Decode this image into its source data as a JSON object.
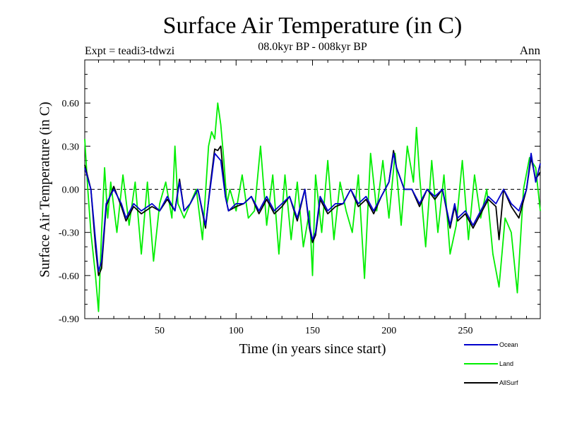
{
  "chart_data": {
    "type": "line",
    "title": "Surface Air Temperature (in C)",
    "subtitle": "08.0kyr BP - 008kyr BP",
    "experiment": "Expt = teadi3-tdwzi",
    "season": "Ann",
    "xlabel": "Time (in years since start)",
    "ylabel": "Surface Air Temperature (in C)",
    "xlim": [
      1,
      299
    ],
    "ylim": [
      -0.9,
      0.9
    ],
    "xticks": [
      50,
      100,
      150,
      200,
      250
    ],
    "xtick_labels": [
      "50",
      "100",
      "150",
      "200",
      "250"
    ],
    "yticks": [
      -0.9,
      -0.6,
      -0.3,
      0.0,
      0.3,
      0.6
    ],
    "ytick_labels": [
      "-0.90",
      "-0.60",
      "-0.30",
      "0.00",
      "0.30",
      "0.60"
    ],
    "zero_line": true,
    "series": [
      {
        "name": "Ocean",
        "color": "#0000cc",
        "x": [
          1,
          5,
          8,
          10,
          12,
          15,
          20,
          25,
          28,
          33,
          38,
          45,
          50,
          55,
          60,
          63,
          66,
          70,
          75,
          80,
          83,
          86,
          90,
          93,
          95,
          100,
          105,
          110,
          115,
          120,
          125,
          130,
          135,
          140,
          145,
          148,
          150,
          152,
          155,
          160,
          165,
          170,
          175,
          180,
          185,
          190,
          195,
          200,
          203,
          205,
          210,
          215,
          220,
          225,
          230,
          235,
          240,
          243,
          245,
          250,
          255,
          260,
          265,
          270,
          275,
          280,
          285,
          290,
          293,
          296,
          299
        ],
        "values": [
          0.15,
          0.0,
          -0.35,
          -0.57,
          -0.5,
          -0.1,
          0.0,
          -0.1,
          -0.2,
          -0.1,
          -0.15,
          -0.1,
          -0.15,
          -0.05,
          -0.15,
          0.05,
          -0.15,
          -0.1,
          0.0,
          -0.25,
          0.0,
          0.25,
          0.2,
          -0.05,
          -0.15,
          -0.1,
          -0.1,
          -0.05,
          -0.15,
          -0.05,
          -0.15,
          -0.1,
          -0.05,
          -0.2,
          0.0,
          -0.25,
          -0.35,
          -0.3,
          -0.05,
          -0.15,
          -0.1,
          -0.1,
          0.0,
          -0.1,
          -0.05,
          -0.15,
          -0.05,
          0.05,
          0.25,
          0.15,
          0.0,
          0.0,
          -0.1,
          0.0,
          -0.05,
          0.0,
          -0.25,
          -0.1,
          -0.2,
          -0.15,
          -0.25,
          -0.15,
          -0.05,
          -0.1,
          0.0,
          -0.1,
          -0.15,
          0.0,
          0.25,
          0.05,
          0.18
        ]
      },
      {
        "name": "Land",
        "color": "#00ee00",
        "x": [
          1,
          3,
          5,
          8,
          10,
          12,
          14,
          16,
          18,
          22,
          26,
          30,
          34,
          38,
          42,
          46,
          50,
          54,
          58,
          60,
          62,
          66,
          70,
          74,
          78,
          82,
          84,
          86,
          88,
          90,
          92,
          94,
          96,
          100,
          104,
          108,
          112,
          116,
          120,
          124,
          128,
          132,
          136,
          140,
          144,
          148,
          150,
          152,
          156,
          160,
          164,
          168,
          172,
          176,
          180,
          184,
          188,
          192,
          196,
          200,
          204,
          208,
          212,
          216,
          218,
          220,
          224,
          228,
          232,
          236,
          240,
          244,
          248,
          252,
          256,
          260,
          264,
          268,
          272,
          276,
          280,
          284,
          288,
          292,
          296,
          299
        ],
        "values": [
          0.35,
          0.0,
          -0.3,
          -0.6,
          -0.85,
          -0.3,
          0.15,
          -0.2,
          0.05,
          -0.3,
          0.1,
          -0.25,
          0.05,
          -0.45,
          0.05,
          -0.5,
          -0.1,
          0.05,
          -0.2,
          0.3,
          -0.1,
          -0.2,
          -0.1,
          0.0,
          -0.35,
          0.3,
          0.4,
          0.35,
          0.6,
          0.45,
          0.2,
          -0.1,
          0.0,
          -0.15,
          0.1,
          -0.2,
          -0.15,
          0.3,
          -0.25,
          0.1,
          -0.45,
          0.1,
          -0.35,
          0.05,
          -0.4,
          -0.15,
          -0.6,
          0.1,
          -0.3,
          0.2,
          -0.35,
          0.05,
          -0.15,
          -0.3,
          0.1,
          -0.62,
          0.25,
          -0.15,
          0.2,
          -0.2,
          0.25,
          -0.25,
          0.3,
          0.05,
          0.43,
          0.1,
          -0.4,
          0.2,
          -0.3,
          0.1,
          -0.45,
          -0.25,
          0.2,
          -0.35,
          0.1,
          -0.2,
          0.0,
          -0.45,
          -0.68,
          -0.2,
          -0.3,
          -0.72,
          0.0,
          0.22,
          0.15,
          -0.15
        ]
      },
      {
        "name": "AllSurf",
        "color": "#000000",
        "x": [
          1,
          5,
          8,
          10,
          12,
          15,
          20,
          25,
          28,
          33,
          38,
          45,
          50,
          55,
          60,
          63,
          66,
          70,
          75,
          80,
          83,
          86,
          88,
          90,
          93,
          95,
          100,
          105,
          110,
          115,
          120,
          125,
          130,
          135,
          140,
          145,
          148,
          150,
          152,
          155,
          160,
          165,
          170,
          175,
          180,
          185,
          190,
          195,
          200,
          203,
          205,
          210,
          215,
          220,
          225,
          230,
          235,
          240,
          243,
          245,
          250,
          255,
          260,
          265,
          270,
          272,
          275,
          280,
          285,
          290,
          293,
          296,
          299
        ],
        "values": [
          0.17,
          0.0,
          -0.4,
          -0.6,
          -0.55,
          -0.12,
          0.02,
          -0.12,
          -0.22,
          -0.12,
          -0.17,
          -0.12,
          -0.15,
          -0.07,
          -0.15,
          0.07,
          -0.15,
          -0.1,
          0.0,
          -0.27,
          0.02,
          0.28,
          0.27,
          0.3,
          -0.05,
          -0.15,
          -0.12,
          -0.1,
          -0.05,
          -0.17,
          -0.07,
          -0.17,
          -0.12,
          -0.05,
          -0.22,
          0.0,
          -0.27,
          -0.37,
          -0.32,
          -0.07,
          -0.17,
          -0.12,
          -0.1,
          0.0,
          -0.12,
          -0.07,
          -0.17,
          -0.05,
          0.05,
          0.27,
          0.15,
          0.0,
          0.0,
          -0.12,
          0.0,
          -0.07,
          0.0,
          -0.27,
          -0.12,
          -0.22,
          -0.17,
          -0.27,
          -0.17,
          -0.07,
          -0.12,
          -0.35,
          0.0,
          -0.12,
          -0.2,
          0.0,
          0.22,
          0.07,
          0.12
        ]
      }
    ]
  }
}
